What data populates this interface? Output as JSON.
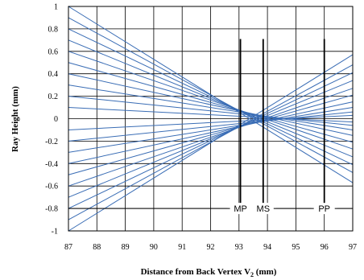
{
  "chart_data": {
    "type": "line",
    "title": "",
    "xlabel": "Distance from Back Vertex V",
    "xlabel_subscript": "2",
    "xlabel_suffix": " (mm)",
    "ylabel": "Ray Height (mm)",
    "xlim": [
      87,
      97
    ],
    "ylim": [
      -1,
      1
    ],
    "x_ticks": [
      "87",
      "88",
      "89",
      "90",
      "91",
      "92",
      "93",
      "94",
      "95",
      "96",
      "97"
    ],
    "y_ticks": [
      "1",
      "0.8",
      "0.6",
      "0.4",
      "0.2",
      "0",
      "-0.2",
      "-0.4",
      "-0.6",
      "-0.8",
      "-1"
    ],
    "grid": true,
    "line_color": "#3a6db5",
    "rays": {
      "description_source": "fan of rays: height at x=87 and x=97",
      "series": [
        {
          "y_at_87": 1.0,
          "y_at_97": -0.57
        },
        {
          "y_at_87": 0.9,
          "y_at_97": -0.48
        },
        {
          "y_at_87": 0.8,
          "y_at_97": -0.41
        },
        {
          "y_at_87": 0.7,
          "y_at_97": -0.34
        },
        {
          "y_at_87": 0.6,
          "y_at_97": -0.27
        },
        {
          "y_at_87": 0.5,
          "y_at_97": -0.21
        },
        {
          "y_at_87": 0.4,
          "y_at_97": -0.15
        },
        {
          "y_at_87": 0.3,
          "y_at_97": -0.1
        },
        {
          "y_at_87": 0.2,
          "y_at_97": -0.06
        },
        {
          "y_at_87": 0.1,
          "y_at_97": -0.03
        },
        {
          "y_at_87": -0.1,
          "y_at_97": 0.03
        },
        {
          "y_at_87": -0.2,
          "y_at_97": 0.06
        },
        {
          "y_at_87": -0.3,
          "y_at_97": 0.1
        },
        {
          "y_at_87": -0.4,
          "y_at_97": 0.15
        },
        {
          "y_at_87": -0.5,
          "y_at_97": 0.21
        },
        {
          "y_at_87": -0.6,
          "y_at_97": 0.27
        },
        {
          "y_at_87": -0.7,
          "y_at_97": 0.34
        },
        {
          "y_at_87": -0.8,
          "y_at_97": 0.41
        },
        {
          "y_at_87": -0.9,
          "y_at_97": 0.48
        },
        {
          "y_at_87": -1.0,
          "y_at_97": 0.57
        }
      ]
    },
    "markers": [
      {
        "label": "MP",
        "x": 93.05,
        "y_from": -0.8,
        "y_to": 0.71
      },
      {
        "label": "MS",
        "x": 93.85,
        "y_from": -0.8,
        "y_to": 0.71
      },
      {
        "label": "PP",
        "x": 96.0,
        "y_from": -0.8,
        "y_to": 0.71
      }
    ],
    "marker_baseline_y": -0.8
  }
}
